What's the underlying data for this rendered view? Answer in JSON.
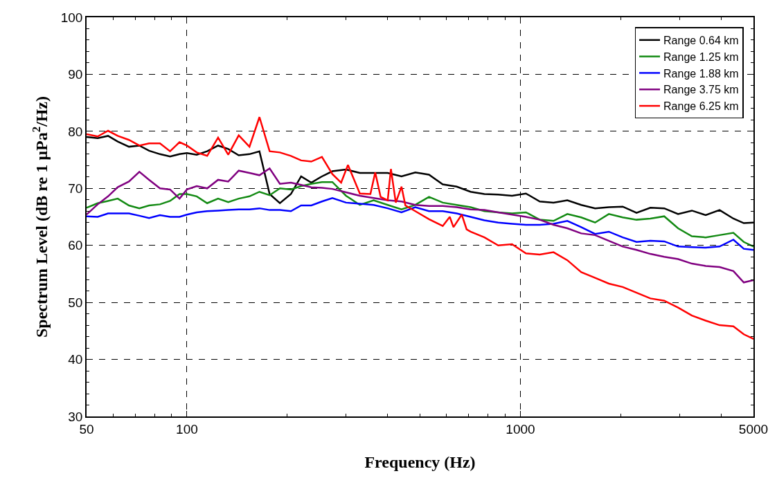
{
  "chart_data": {
    "type": "line",
    "xlabel": "Frequency (Hz)",
    "ylabel": "Spectrum Level (dB re 1 µPa$^{2}$/Hz)",
    "log": "x",
    "grid": true,
    "legend": "top right",
    "line_style": "solid",
    "marker": "none",
    "xlim": [
      50,
      5000
    ],
    "xticks": [
      50,
      100,
      1000,
      5000,
      {
        "value": 60,
        "label": null
      },
      {
        "value": 70,
        "label": null
      },
      {
        "value": 80,
        "label": null
      },
      {
        "value": 90,
        "label": null
      },
      {
        "value": 200,
        "label": null
      },
      {
        "value": 300,
        "label": null
      },
      {
        "value": 400,
        "label": null
      },
      {
        "value": 500,
        "label": null
      },
      {
        "value": 600,
        "label": null
      },
      {
        "value": 700,
        "label": null
      },
      {
        "value": 800,
        "label": null
      },
      {
        "value": 900,
        "label": null
      },
      {
        "value": 2000,
        "label": null
      },
      {
        "value": 3000,
        "label": null
      },
      {
        "value": 4000,
        "label": null
      }
    ],
    "ylim": [
      30,
      100
    ],
    "yticks": [
      30,
      40,
      50,
      60,
      70,
      80,
      90,
      100,
      {
        "value": 32,
        "label": null
      },
      {
        "value": 34,
        "label": null
      },
      {
        "value": 36,
        "label": null
      },
      {
        "value": 38,
        "label": null
      },
      {
        "value": 42,
        "label": null
      },
      {
        "value": 44,
        "label": null
      },
      {
        "value": 46,
        "label": null
      },
      {
        "value": 48,
        "label": null
      },
      {
        "value": 52,
        "label": null
      },
      {
        "value": 54,
        "label": null
      },
      {
        "value": 56,
        "label": null
      },
      {
        "value": 58,
        "label": null
      },
      {
        "value": 62,
        "label": null
      },
      {
        "value": 64,
        "label": null
      },
      {
        "value": 66,
        "label": null
      },
      {
        "value": 68,
        "label": null
      },
      {
        "value": 72,
        "label": null
      },
      {
        "value": 74,
        "label": null
      },
      {
        "value": 76,
        "label": null
      },
      {
        "value": 78,
        "label": null
      },
      {
        "value": 82,
        "label": null
      },
      {
        "value": 84,
        "label": null
      },
      {
        "value": 86,
        "label": null
      },
      {
        "value": 88,
        "label": null
      },
      {
        "value": 92,
        "label": null
      },
      {
        "value": 94,
        "label": null
      },
      {
        "value": 96,
        "label": null
      },
      {
        "value": 98,
        "label": null
      }
    ],
    "x": [
      50,
      54,
      58,
      62,
      67,
      72,
      77,
      83,
      89,
      95,
      100,
      107,
      115,
      124,
      133,
      143,
      154,
      165,
      177,
      190,
      205,
      220,
      236,
      254,
      273,
      300,
      330,
      363,
      400,
      440,
      484,
      532,
      585,
      644,
      709,
      780,
      858,
      944,
      1039,
      1143,
      1257,
      1383,
      1522,
      1675,
      1842,
      2027,
      2230,
      2454,
      2700,
      2971,
      3268,
      3596,
      3957,
      4353,
      4677,
      5000
    ],
    "series": [
      {
        "name": "Range 0.64 km",
        "color": "#000000",
        "values": [
          79.0,
          78.8,
          79.2,
          78.2,
          77.3,
          77.5,
          76.6,
          76.0,
          75.6,
          76.0,
          76.2,
          75.9,
          76.5,
          77.5,
          76.9,
          75.8,
          76.0,
          76.5,
          69.0,
          67.4,
          69.0,
          72.1,
          71.0,
          72.1,
          73.0,
          73.3,
          72.7,
          72.7,
          72.7,
          72.1,
          72.8,
          72.4,
          70.7,
          70.3,
          69.4,
          69.0,
          68.9,
          68.7,
          69.1,
          67.7,
          67.5,
          67.9,
          67.1,
          66.5,
          66.7,
          66.8,
          65.7,
          66.6,
          66.5,
          65.5,
          66.1,
          65.3,
          66.2,
          64.7,
          63.9,
          64.0
        ]
      },
      {
        "name": "Range 1.25 km",
        "color": "#138a13",
        "values": [
          66.6,
          67.4,
          67.8,
          68.2,
          67.0,
          66.5,
          67.0,
          67.2,
          67.8,
          69.0,
          69.0,
          68.6,
          67.4,
          68.2,
          67.6,
          68.2,
          68.6,
          69.4,
          68.8,
          70.0,
          69.8,
          70.4,
          70.8,
          71.1,
          71.1,
          68.7,
          67.1,
          67.9,
          67.1,
          66.3,
          67.1,
          68.5,
          67.5,
          67.1,
          66.7,
          66.0,
          65.8,
          65.6,
          65.8,
          64.5,
          64.3,
          65.5,
          64.9,
          64.0,
          65.5,
          64.9,
          64.5,
          64.7,
          65.1,
          63.0,
          61.6,
          61.4,
          61.8,
          62.2,
          60.6,
          59.8
        ]
      },
      {
        "name": "Range 1.88 km",
        "color": "#0000ff",
        "values": [
          65.1,
          65.0,
          65.6,
          65.6,
          65.6,
          65.2,
          64.8,
          65.3,
          65.0,
          65.0,
          65.4,
          65.8,
          66.0,
          66.1,
          66.2,
          66.3,
          66.3,
          66.5,
          66.2,
          66.2,
          66.0,
          67.0,
          67.0,
          67.7,
          68.3,
          67.5,
          67.3,
          67.1,
          66.5,
          65.8,
          66.7,
          66.0,
          66.0,
          65.6,
          65.0,
          64.4,
          64.0,
          63.8,
          63.6,
          63.6,
          63.8,
          64.3,
          63.2,
          62.0,
          62.4,
          61.4,
          60.6,
          60.8,
          60.7,
          59.8,
          59.7,
          59.6,
          59.8,
          61.0,
          59.4,
          59.2
        ]
      },
      {
        "name": "Range 3.75 km",
        "color": "#800080",
        "values": [
          65.4,
          67.2,
          68.6,
          70.2,
          71.2,
          72.9,
          71.5,
          70.0,
          69.8,
          68.2,
          69.8,
          70.4,
          70.0,
          71.5,
          71.2,
          73.1,
          72.7,
          72.3,
          73.5,
          70.8,
          71.0,
          70.6,
          70.2,
          70.1,
          69.9,
          69.3,
          68.7,
          68.3,
          67.9,
          67.7,
          67.1,
          66.9,
          66.9,
          66.7,
          66.3,
          66.2,
          65.8,
          65.4,
          65.0,
          64.5,
          63.6,
          63.0,
          62.1,
          61.8,
          60.8,
          59.8,
          59.2,
          58.5,
          58.0,
          57.6,
          56.8,
          56.4,
          56.2,
          55.5,
          53.5,
          53.9
        ]
      },
      {
        "name": "Range 6.25 km",
        "color": "#ff0000",
        "x": [
          50,
          54,
          58,
          62,
          67,
          72,
          77,
          83,
          89,
          95,
          100,
          107,
          115,
          124,
          133,
          143,
          154,
          165,
          177,
          190,
          205,
          220,
          236,
          254,
          273,
          290,
          304,
          330,
          355,
          367,
          381,
          400,
          409,
          423,
          440,
          452,
          484,
          532,
          585,
          614,
          630,
          667,
          690,
          709,
          780,
          858,
          944,
          1039,
          1143,
          1257,
          1383,
          1522,
          1675,
          1842,
          2027,
          2230,
          2454,
          2700,
          2971,
          3268,
          3596,
          3957,
          4353,
          4677,
          5000
        ],
        "values": [
          79.5,
          79.1,
          80.1,
          79.2,
          78.5,
          77.5,
          77.9,
          77.9,
          76.5,
          78.1,
          77.5,
          76.3,
          75.7,
          78.9,
          75.9,
          79.3,
          77.3,
          82.5,
          76.5,
          76.3,
          75.7,
          74.9,
          74.7,
          75.5,
          72.5,
          71.0,
          74.1,
          69.1,
          69.0,
          72.8,
          68.5,
          67.9,
          73.4,
          67.5,
          70.3,
          67.0,
          66.0,
          64.6,
          63.4,
          65.0,
          63.2,
          65.4,
          62.8,
          62.4,
          61.4,
          60.0,
          60.2,
          58.6,
          58.4,
          58.8,
          57.4,
          55.3,
          54.3,
          53.3,
          52.7,
          51.7,
          50.7,
          50.3,
          49.1,
          47.7,
          46.8,
          46.0,
          45.8,
          44.4,
          43.6
        ]
      }
    ]
  }
}
